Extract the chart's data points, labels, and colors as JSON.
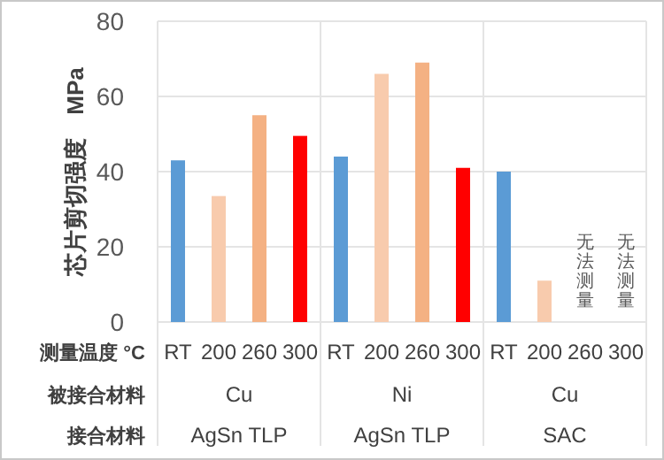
{
  "chart_data": {
    "type": "bar",
    "ylabel": "芯片剪切强度　MPa",
    "xlabel": "测量温度 °C",
    "categories": [
      "RT",
      "200",
      "260",
      "300",
      "RT",
      "200",
      "260",
      "300",
      "RT",
      "200",
      "260",
      "300"
    ],
    "values": [
      43,
      33.5,
      55,
      49.5,
      44,
      66,
      69,
      41,
      40,
      11,
      null,
      null
    ],
    "colors": [
      "#5b9bd5",
      "#f8cbad",
      "#f4b183",
      "#ff0000",
      "#5b9bd5",
      "#f8cbad",
      "#f4b183",
      "#ff0000",
      "#5b9bd5",
      "#f8cbad",
      null,
      null
    ],
    "ylim": [
      0,
      80
    ],
    "yticks": [
      0,
      20,
      40,
      60,
      80
    ],
    "grid": "y",
    "annotations": [
      "被接合材料",
      "Cu",
      "Ni",
      "Cu",
      "接合材料",
      "AgSn TLP",
      "AgSn TLP",
      "SAC",
      "无法测量",
      "无法测量"
    ]
  }
}
